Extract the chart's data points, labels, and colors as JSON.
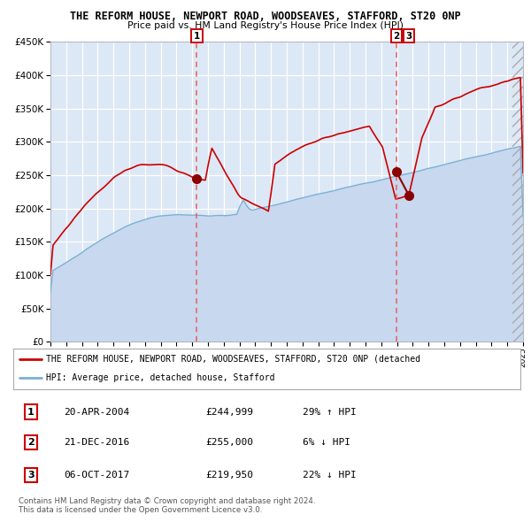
{
  "title": "THE REFORM HOUSE, NEWPORT ROAD, WOODSEAVES, STAFFORD, ST20 0NP",
  "subtitle": "Price paid vs. HM Land Registry's House Price Index (HPI)",
  "ylim": [
    0,
    450000
  ],
  "yticks": [
    0,
    50000,
    100000,
    150000,
    200000,
    250000,
    300000,
    350000,
    400000,
    450000
  ],
  "red_line_color": "#cc0000",
  "blue_line_color": "#7bafd4",
  "fill_color": "#c8d8ee",
  "bg_color": "#dce8f5",
  "grid_color": "#ffffff",
  "dashed_line_color": "#e86060",
  "transaction1_x": 2004.29,
  "transaction1_price": 244999,
  "transaction1_hpi_pct": "29% ↑ HPI",
  "transaction1_date": "20-APR-2004",
  "transaction2_x": 2016.96,
  "transaction2_price": 255000,
  "transaction2_hpi_pct": "6% ↓ HPI",
  "transaction2_date": "21-DEC-2016",
  "transaction3_x": 2017.75,
  "transaction3_price": 219950,
  "transaction3_hpi_pct": "22% ↓ HPI",
  "transaction3_date": "06-OCT-2017",
  "legend_label_red": "THE REFORM HOUSE, NEWPORT ROAD, WOODSEAVES, STAFFORD, ST20 0NP (detached",
  "legend_label_blue": "HPI: Average price, detached house, Stafford",
  "footer1": "Contains HM Land Registry data © Crown copyright and database right 2024.",
  "footer2": "This data is licensed under the Open Government Licence v3.0."
}
